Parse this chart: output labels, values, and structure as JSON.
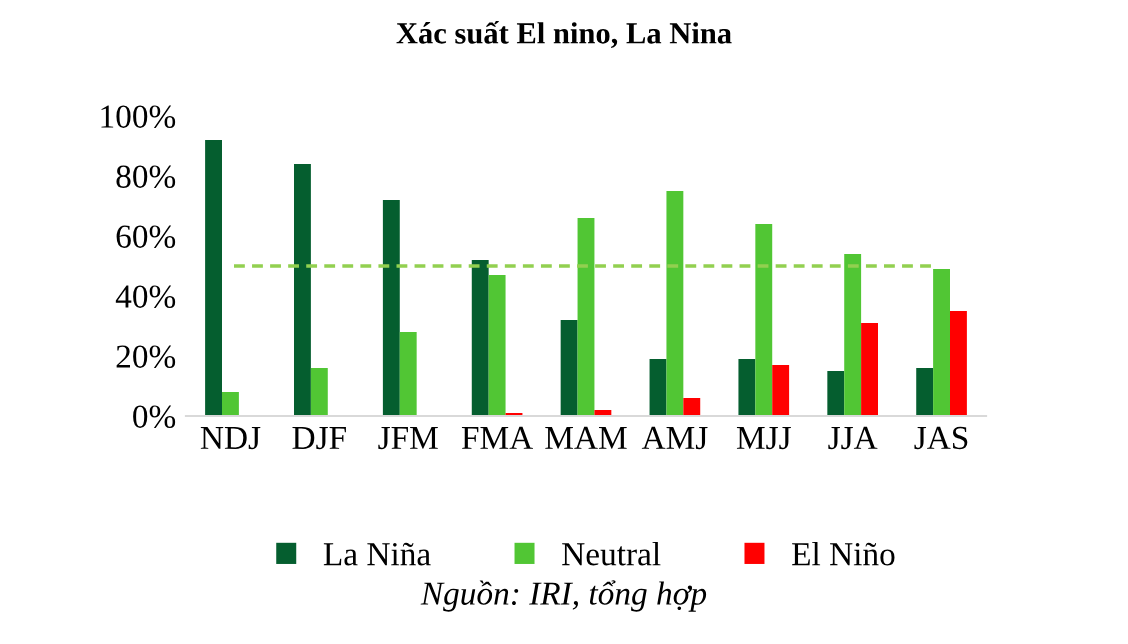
{
  "chart_data": {
    "type": "bar",
    "title": "Xác suất El nino, La Nina",
    "categories": [
      "NDJ",
      "DJF",
      "JFM",
      "FMA",
      "MAM",
      "AMJ",
      "MJJ",
      "JJA",
      "JAS"
    ],
    "series": [
      {
        "name": "La Niña",
        "color": "#055e2f",
        "values": [
          92,
          84,
          72,
          52,
          32,
          19,
          19,
          15,
          16
        ]
      },
      {
        "name": "Neutral",
        "color": "#51c634",
        "values": [
          8,
          16,
          28,
          47,
          66,
          75,
          64,
          54,
          49
        ]
      },
      {
        "name": "El Niño",
        "color": "#ff0000",
        "values": [
          0,
          0,
          0,
          1,
          2,
          6,
          17,
          31,
          35
        ]
      }
    ],
    "ylim": [
      0,
      100
    ],
    "yticks": [
      {
        "value": 0,
        "label": "0%"
      },
      {
        "value": 20,
        "label": "20%"
      },
      {
        "value": 40,
        "label": "40%"
      },
      {
        "value": 60,
        "label": "60%"
      },
      {
        "value": 80,
        "label": "80%"
      },
      {
        "value": 100,
        "label": "100%"
      }
    ],
    "ref_lines": [
      {
        "axis": "y",
        "value": 50,
        "label": null,
        "color": "#92d050",
        "line_style": "dashed"
      }
    ],
    "grid": false,
    "legend": "bottom",
    "annotations": [
      "Nguồn: IRI, tổng hợp"
    ]
  }
}
